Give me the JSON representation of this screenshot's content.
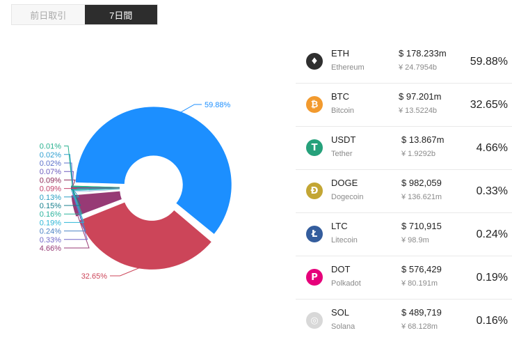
{
  "tabs": [
    {
      "label": "前日取引",
      "active": false
    },
    {
      "label": "7日間",
      "active": true
    }
  ],
  "chart_data": {
    "type": "pie",
    "categories": [
      "ETH",
      "BTC",
      "USDT",
      "DOGE",
      "LTC",
      "DOT",
      "SOL",
      "?",
      "?",
      "?",
      "?",
      "?",
      "?",
      "?",
      "?"
    ],
    "values": [
      59.88,
      32.65,
      4.66,
      0.33,
      0.24,
      0.19,
      0.16,
      0.15,
      0.13,
      0.09,
      0.09,
      0.07,
      0.02,
      0.02,
      0.01
    ],
    "labels": [
      "59.88%",
      "32.65%",
      "4.66%",
      "0.33%",
      "0.24%",
      "0.19%",
      "0.16%",
      "0.15%",
      "0.13%",
      "0.09%",
      "0.09%",
      "0.07%",
      "0.02%",
      "0.02%",
      "0.01%"
    ],
    "colors": [
      "#1c8fff",
      "#cc4559",
      "#973a75",
      "#7066c7",
      "#4d83c4",
      "#2db6d6",
      "#2ab39c",
      "#157e8c",
      "#2a9ec2",
      "#c2416b",
      "#8c2856",
      "#6a5bbd",
      "#5a70c9",
      "#2e9fd0",
      "#26b08e"
    ],
    "donut": true
  },
  "coins": [
    {
      "symbol": "ETH",
      "name": "Ethereum",
      "usd": "$ 178.233m",
      "cny": "¥ 24.7954b",
      "pct": "59.88%",
      "icon": "ethereum-icon",
      "glyph": "♦",
      "color": "#2f2f2f"
    },
    {
      "symbol": "BTC",
      "name": "Bitcoin",
      "usd": "$ 97.201m",
      "cny": "¥ 13.5224b",
      "pct": "32.65%",
      "icon": "bitcoin-icon",
      "glyph": "₿",
      "color": "#f29a2e"
    },
    {
      "symbol": "USDT",
      "name": "Tether",
      "usd": "$ 13.867m",
      "cny": "¥ 1.9292b",
      "pct": "4.66%",
      "icon": "tether-icon",
      "glyph": "T",
      "color": "#26a17b"
    },
    {
      "symbol": "DOGE",
      "name": "Dogecoin",
      "usd": "$ 982,059",
      "cny": "¥ 136.621m",
      "pct": "0.33%",
      "icon": "dogecoin-icon",
      "glyph": "Ð",
      "color": "#c3a634"
    },
    {
      "symbol": "LTC",
      "name": "Litecoin",
      "usd": "$ 710,915",
      "cny": "¥ 98.9m",
      "pct": "0.24%",
      "icon": "litecoin-icon",
      "glyph": "Ł",
      "color": "#345d9d"
    },
    {
      "symbol": "DOT",
      "name": "Polkadot",
      "usd": "$ 576,429",
      "cny": "¥ 80.191m",
      "pct": "0.19%",
      "icon": "polkadot-icon",
      "glyph": "P",
      "color": "#e6007a"
    },
    {
      "symbol": "SOL",
      "name": "Solana",
      "usd": "$ 489,719",
      "cny": "¥ 68.128m",
      "pct": "0.16%",
      "icon": "solana-icon",
      "glyph": "◎",
      "color": "#d8d8d8"
    }
  ]
}
